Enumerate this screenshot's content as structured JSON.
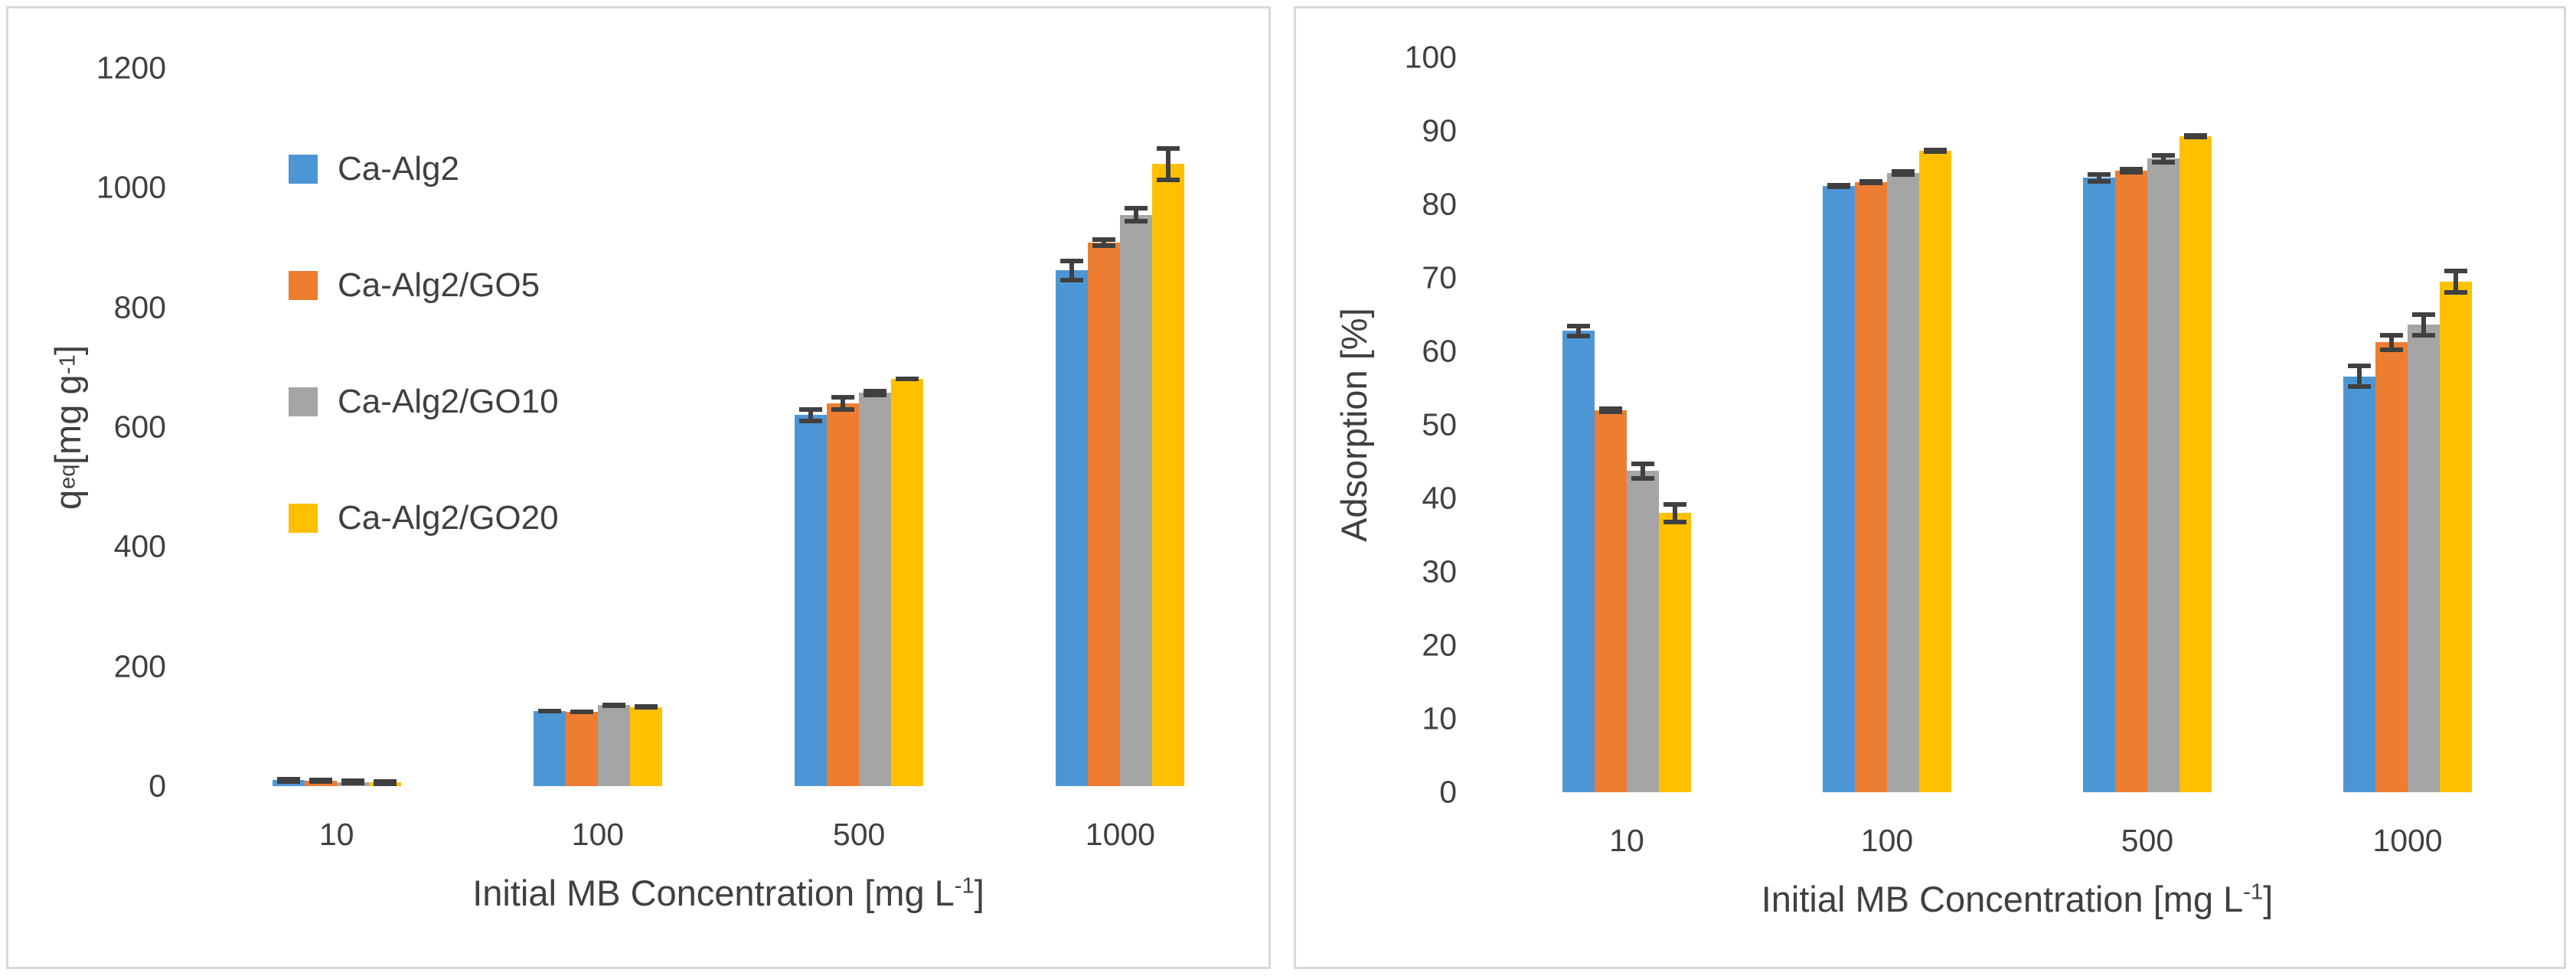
{
  "colors": {
    "blue": "#4D96D6",
    "orange": "#ED7D31",
    "gray": "#A5A5A5",
    "yellow": "#FFC000",
    "error_bar": "#404040",
    "text": "#404040",
    "panel_border": "#D9D9D9"
  },
  "chart_data": [
    {
      "type": "bar",
      "categories": [
        "10",
        "100",
        "500",
        "1000"
      ],
      "xlabel": {
        "text": "Initial MB Concentration [mg L",
        "sup": "-1",
        "end": "]"
      },
      "ylabel": {
        "text": "q",
        "sub": "eq",
        "mid": " [mg g",
        "sup": "-1",
        "end": "]"
      },
      "ylim": [
        0,
        1200
      ],
      "yticks": [
        0,
        200,
        400,
        600,
        800,
        1000,
        1200
      ],
      "grid": false,
      "legend_position": "upper-left",
      "show_legend": true,
      "series": [
        {
          "name": "Ca-Alg2",
          "color": "blue",
          "values": [
            10,
            125,
            620,
            862
          ],
          "errors": [
            2,
            4,
            13,
            20
          ]
        },
        {
          "name": "Ca-Alg2/GO5",
          "color": "orange",
          "values": [
            9,
            124,
            640,
            908
          ],
          "errors": [
            2,
            4,
            14,
            9
          ]
        },
        {
          "name": "Ca-Alg2/GO10",
          "color": "gray",
          "values": [
            7,
            135,
            657,
            955
          ],
          "errors": [
            2,
            3,
            7,
            15
          ]
        },
        {
          "name": "Ca-Alg2/GO20",
          "color": "yellow",
          "values": [
            6,
            132,
            681,
            1040
          ],
          "errors": [
            2,
            3,
            4,
            30
          ]
        }
      ]
    },
    {
      "type": "bar",
      "categories": [
        "10",
        "100",
        "500",
        "1000"
      ],
      "xlabel": {
        "text": "Initial MB Concentration [mg L",
        "sup": "-1",
        "end": "]"
      },
      "ylabel": {
        "text": "Adsorption [%]"
      },
      "ylim": [
        0,
        100
      ],
      "yticks": [
        0,
        10,
        20,
        30,
        40,
        50,
        60,
        70,
        80,
        90,
        100
      ],
      "grid": false,
      "show_legend": false,
      "series": [
        {
          "name": "Ca-Alg2",
          "color": "blue",
          "values": [
            62.8,
            82.5,
            83.6,
            56.6
          ],
          "errors": [
            1.0,
            0.4,
            0.8,
            1.7
          ]
        },
        {
          "name": "Ca-Alg2/GO5",
          "color": "orange",
          "values": [
            52.0,
            83.0,
            84.6,
            61.2
          ],
          "errors": [
            0.5,
            0.4,
            0.5,
            1.3
          ]
        },
        {
          "name": "Ca-Alg2/GO10",
          "color": "gray",
          "values": [
            43.7,
            84.3,
            86.2,
            63.6
          ],
          "errors": [
            1.3,
            0.5,
            0.8,
            1.7
          ]
        },
        {
          "name": "Ca-Alg2/GO20",
          "color": "yellow",
          "values": [
            38.0,
            87.3,
            89.3,
            69.5
          ],
          "errors": [
            1.5,
            0.4,
            0.4,
            1.8
          ]
        }
      ]
    }
  ]
}
